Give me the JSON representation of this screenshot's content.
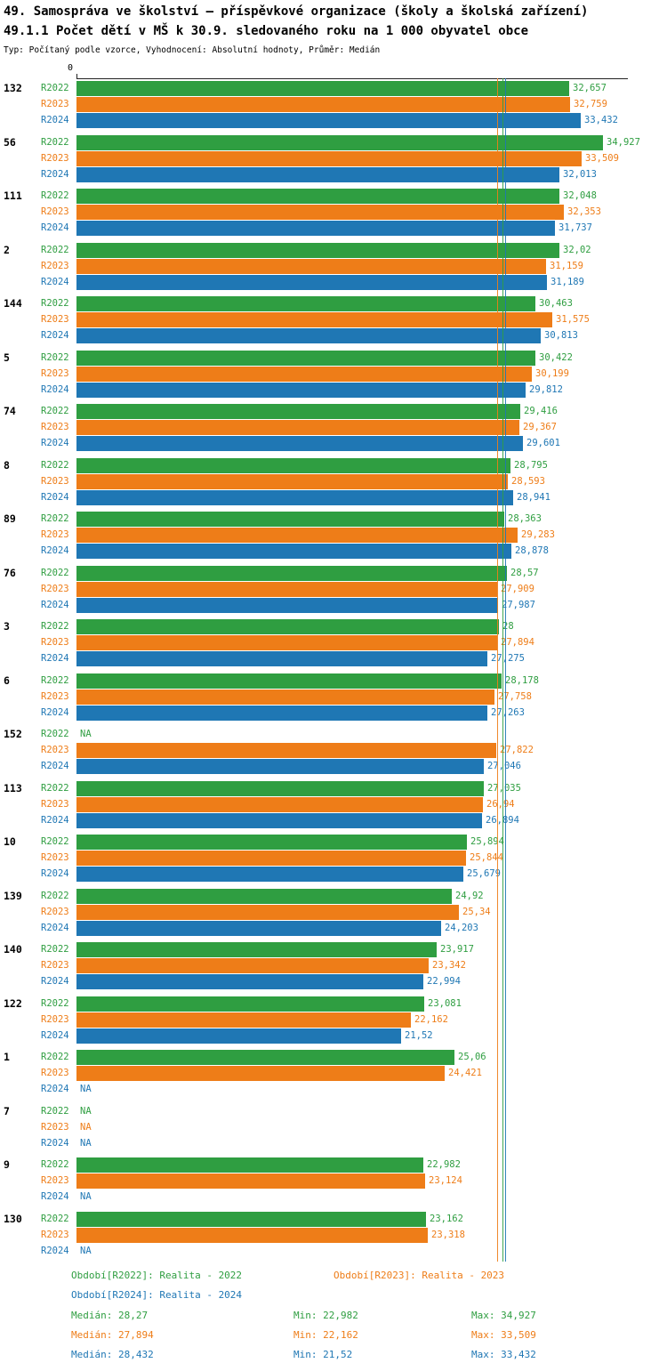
{
  "header": {
    "title": "49. Samospráva ve školství – příspěvkové organizace (školy a školská zařízení)",
    "subtitle": "49.1.1 Počet dětí v MŠ k 30.9. sledovaného roku na 1 000 obyvatel obce",
    "meta": "Typ: Počítaný podle vzorce, Vyhodnocení: Absolutní hodnoty, Průměr: Medián"
  },
  "axis": {
    "zero_label": "0"
  },
  "na_label": "NA",
  "colors": {
    "R2022": "#2f9e41",
    "R2023": "#ee7d18",
    "R2024": "#1f77b4"
  },
  "chart_data": {
    "type": "bar",
    "orientation": "horizontal",
    "title": "49.1.1 Počet dětí v MŠ k 30.9. sledovaného roku na 1 000 obyvatel obce",
    "xlabel": "",
    "ylabel": "",
    "xlim": [
      0,
      36.3
    ],
    "grid": false,
    "legend_position": "bottom",
    "categories": [
      "132",
      "56",
      "111",
      "2",
      "144",
      "5",
      "74",
      "8",
      "89",
      "76",
      "3",
      "6",
      "152",
      "113",
      "10",
      "139",
      "140",
      "122",
      "1",
      "7",
      "9",
      "130"
    ],
    "series": [
      {
        "name": "R2022",
        "color": "#2f9e41",
        "values": [
          32.657,
          34.927,
          32.048,
          32.02,
          30.463,
          30.422,
          29.416,
          28.795,
          28.363,
          28.57,
          28,
          28.178,
          null,
          27.035,
          25.894,
          24.92,
          23.917,
          23.081,
          25.06,
          null,
          22.982,
          23.162
        ],
        "labels": [
          "32,657",
          "34,927",
          "32,048",
          "32,02",
          "30,463",
          "30,422",
          "29,416",
          "28,795",
          "28,363",
          "28,57",
          "28",
          "28,178",
          "NA",
          "27,035",
          "25,894",
          "24,92",
          "23,917",
          "23,081",
          "25,06",
          "NA",
          "22,982",
          "23,162"
        ]
      },
      {
        "name": "R2023",
        "color": "#ee7d18",
        "values": [
          32.759,
          33.509,
          32.353,
          31.159,
          31.575,
          30.199,
          29.367,
          28.593,
          29.283,
          27.909,
          27.894,
          27.758,
          27.822,
          26.94,
          25.844,
          25.34,
          23.342,
          22.162,
          24.421,
          null,
          23.124,
          23.318
        ],
        "labels": [
          "32,759",
          "33,509",
          "32,353",
          "31,159",
          "31,575",
          "30,199",
          "29,367",
          "28,593",
          "29,283",
          "27,909",
          "27,894",
          "27,758",
          "27,822",
          "26,94",
          "25,844",
          "25,34",
          "23,342",
          "22,162",
          "24,421",
          "NA",
          "23,124",
          "23,318"
        ]
      },
      {
        "name": "R2024",
        "color": "#1f77b4",
        "values": [
          33.432,
          32.013,
          31.737,
          31.189,
          30.813,
          29.812,
          29.601,
          28.941,
          28.878,
          27.987,
          27.275,
          27.263,
          27.046,
          26.894,
          25.679,
          24.203,
          22.994,
          21.52,
          null,
          null,
          null,
          null
        ],
        "labels": [
          "33,432",
          "32,013",
          "31,737",
          "31,189",
          "30,813",
          "29,812",
          "29,601",
          "28,941",
          "28,878",
          "27,987",
          "27,275",
          "27,263",
          "27,046",
          "26,894",
          "25,679",
          "24,203",
          "22,994",
          "21,52",
          "NA",
          "NA",
          "NA",
          "NA"
        ]
      }
    ],
    "medians": [
      {
        "series": "R2022",
        "value": 28.27
      },
      {
        "series": "R2023",
        "value": 27.894
      },
      {
        "series": "R2024",
        "value": 28.432
      }
    ]
  },
  "legend": {
    "periods": [
      {
        "series": "R2022",
        "label": "Období[R2022]: Realita - 2022"
      },
      {
        "series": "R2023",
        "label": "Období[R2023]: Realita - 2023"
      },
      {
        "series": "R2024",
        "label": "Období[R2024]: Realita - 2024"
      }
    ],
    "stats": [
      {
        "series": "R2022",
        "median": "Medián: 28,27",
        "min": "Min: 22,982",
        "max": "Max: 34,927"
      },
      {
        "series": "R2023",
        "median": "Medián: 27,894",
        "min": "Min: 22,162",
        "max": "Max: 33,509"
      },
      {
        "series": "R2024",
        "median": "Medián: 28,432",
        "min": "Min: 21,52",
        "max": "Max: 33,432"
      }
    ]
  }
}
